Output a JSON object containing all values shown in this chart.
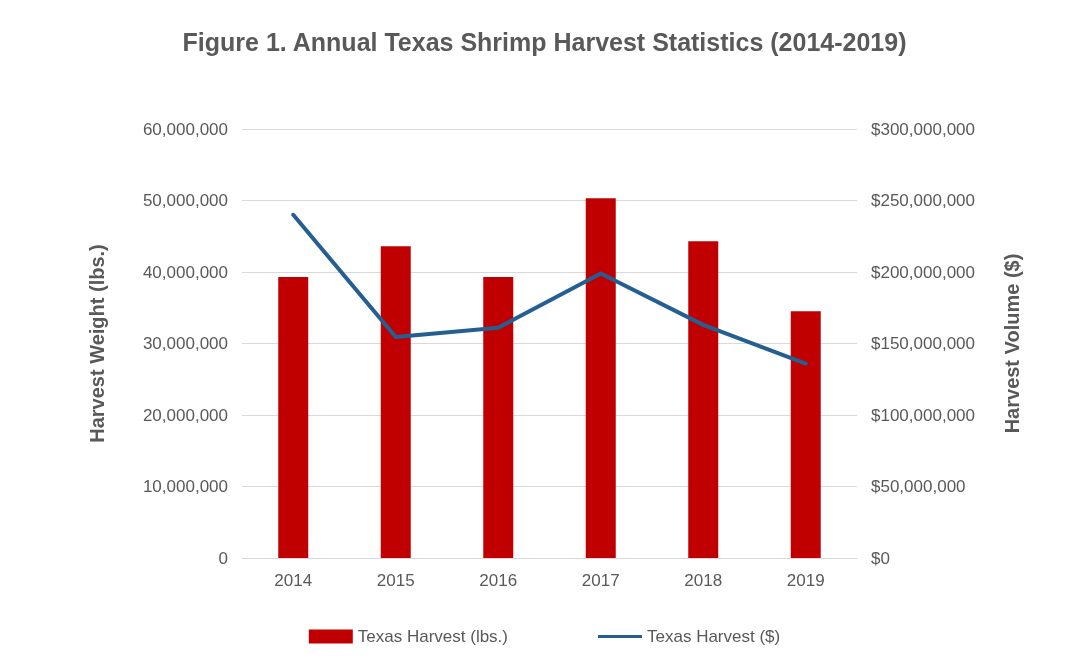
{
  "chart_data": {
    "type": "bar",
    "title": "Figure 1. Annual Texas Shrimp Harvest Statistics (2014-2019)",
    "ylabel": "Harvest Weight (lbs.)",
    "y2label": "Harvest Volume ($)",
    "categories": [
      "2014",
      "2015",
      "2016",
      "2017",
      "2018",
      "2019"
    ],
    "series": [
      {
        "name": "Texas Harvest (lbs.)",
        "color": "#c00000",
        "values": [
          39300000,
          43600000,
          39300000,
          50300000,
          44300000,
          34500000
        ]
      },
      {
        "name": "Texas Harvest ($)",
        "type": "line",
        "axis": "y2",
        "color": "#255e91",
        "values": [
          240000000,
          154500000,
          161000000,
          199000000,
          163000000,
          136000000
        ]
      }
    ],
    "ylim": [
      0,
      60000000
    ],
    "yticks": [
      {
        "value": 0,
        "label": "0"
      },
      {
        "value": 10000000,
        "label": "10,000,000"
      },
      {
        "value": 20000000,
        "label": "20,000,000"
      },
      {
        "value": 30000000,
        "label": "30,000,000"
      },
      {
        "value": 40000000,
        "label": "40,000,000"
      },
      {
        "value": 50000000,
        "label": "50,000,000"
      },
      {
        "value": 60000000,
        "label": "60,000,000"
      }
    ],
    "y2lim": [
      0,
      300000000
    ],
    "y2ticks": [
      {
        "value": 0,
        "label": "$0"
      },
      {
        "value": 50000000,
        "label": "$50,000,000"
      },
      {
        "value": 100000000,
        "label": "$100,000,000"
      },
      {
        "value": 150000000,
        "label": "$150,000,000"
      },
      {
        "value": 200000000,
        "label": "$200,000,000"
      },
      {
        "value": 250000000,
        "label": "$250,000,000"
      },
      {
        "value": 300000000,
        "label": "$300,000,000"
      }
    ],
    "grid": "y",
    "legend": "bottom",
    "marker": "none",
    "line_style": "solid"
  }
}
